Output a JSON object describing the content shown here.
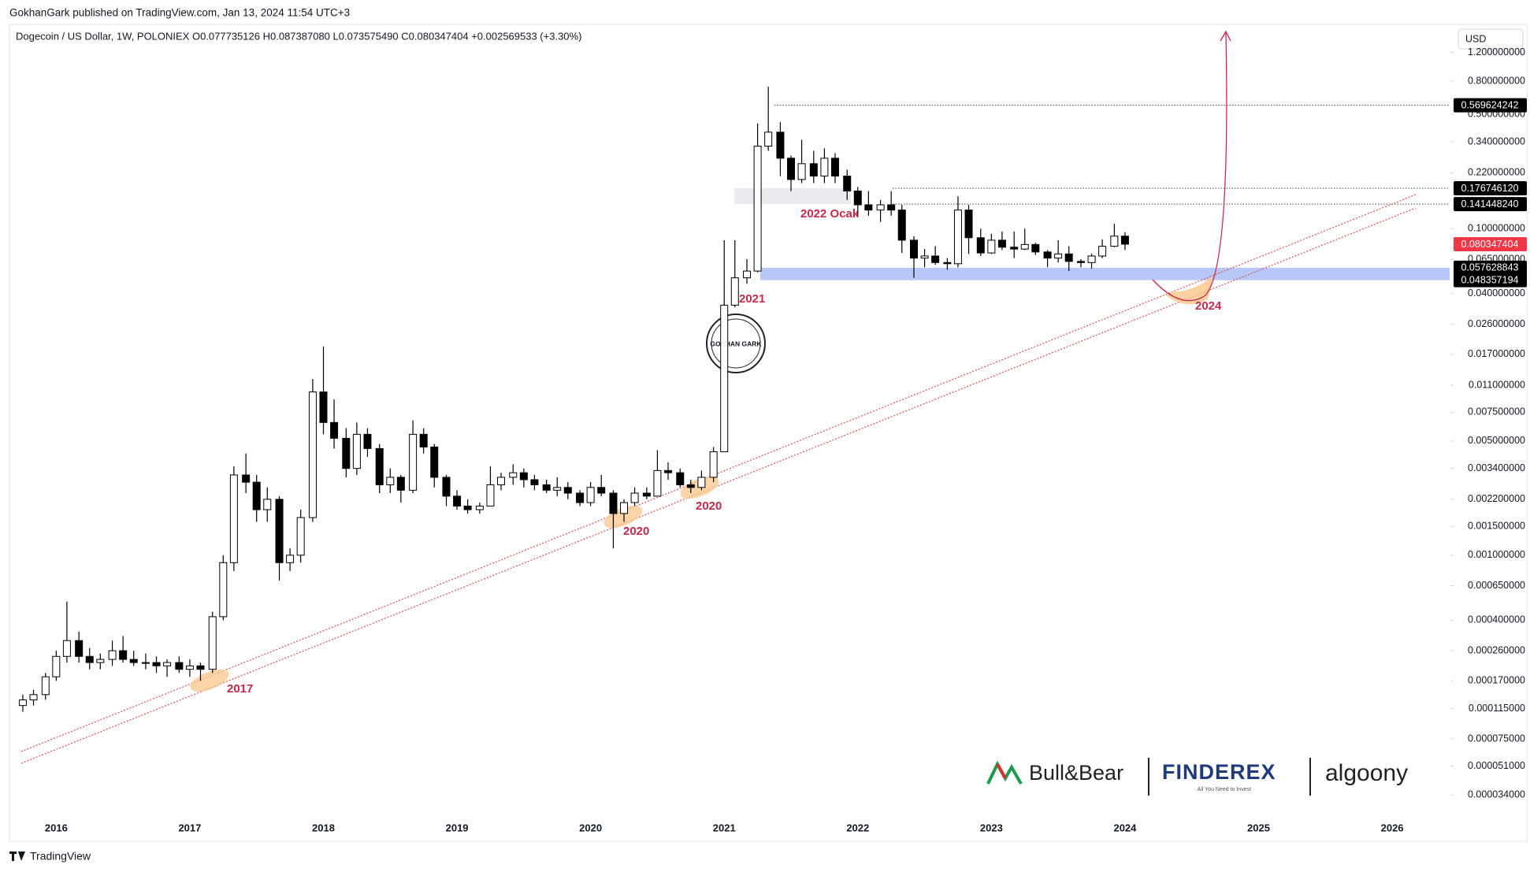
{
  "header": {
    "published": "GokhanGark published on TradingView.com, Jan 13, 2024 11:54 UTC+3",
    "symbol_line": "Dogecoin / US Dollar, 1W, POLONIEX  O0.077735126  H0.087387080  L0.073575490  C0.080347404  +0.002569533 (+3.30%)",
    "currency": "USD",
    "footer": "TradingView"
  },
  "chart_data": {
    "type": "candlestick",
    "log_scale": true,
    "grid": false,
    "colors": {
      "up": "#ffffff",
      "down": "#000000",
      "wick": "#000000"
    },
    "xlim": [
      2015.65,
      2026.43
    ],
    "ylim": [
      2.61e-05,
      1.35
    ],
    "xticks": [
      2016,
      2017,
      2018,
      2019,
      2020,
      2021,
      2022,
      2023,
      2024,
      2025,
      2026
    ],
    "yticks": [
      {
        "value": 1.2,
        "label": "1.200000000"
      },
      {
        "value": 0.8,
        "label": "0.800000000"
      },
      {
        "value": 0.5,
        "label": "0.500000000"
      },
      {
        "value": 0.34,
        "label": "0.340000000"
      },
      {
        "value": 0.22,
        "label": "0.220000000"
      },
      {
        "value": 0.1,
        "label": "0.100000000"
      },
      {
        "value": 0.065,
        "label": "0.065000000"
      },
      {
        "value": 0.04,
        "label": "0.040000000"
      },
      {
        "value": 0.026,
        "label": "0.026000000"
      },
      {
        "value": 0.017,
        "label": "0.017000000"
      },
      {
        "value": 0.011,
        "label": "0.011000000"
      },
      {
        "value": 0.0075,
        "label": "0.007500000"
      },
      {
        "value": 0.005,
        "label": "0.005000000"
      },
      {
        "value": 0.0034,
        "label": "0.003400000"
      },
      {
        "value": 0.0022,
        "label": "0.002200000"
      },
      {
        "value": 0.0015,
        "label": "0.001500000"
      },
      {
        "value": 0.001,
        "label": "0.001000000"
      },
      {
        "value": 0.00065,
        "label": "0.000650000"
      },
      {
        "value": 0.0004,
        "label": "0.000400000"
      },
      {
        "value": 0.00026,
        "label": "0.000260000"
      },
      {
        "value": 0.00017,
        "label": "0.000170000"
      },
      {
        "value": 0.000115,
        "label": "0.000115000"
      },
      {
        "value": 7.5e-05,
        "label": "0.000075000"
      },
      {
        "value": 5.1e-05,
        "label": "0.000051000"
      },
      {
        "value": 3.4e-05,
        "label": "0.000034000"
      }
    ],
    "x": [
      2015.75,
      2015.83,
      2015.92,
      2016.0,
      2016.08,
      2016.17,
      2016.25,
      2016.33,
      2016.42,
      2016.5,
      2016.58,
      2016.67,
      2016.75,
      2016.83,
      2016.92,
      2017.0,
      2017.08,
      2017.17,
      2017.25,
      2017.33,
      2017.42,
      2017.5,
      2017.58,
      2017.67,
      2017.75,
      2017.83,
      2017.92,
      2018.0,
      2018.08,
      2018.17,
      2018.25,
      2018.33,
      2018.42,
      2018.5,
      2018.58,
      2018.67,
      2018.75,
      2018.83,
      2018.92,
      2019.0,
      2019.08,
      2019.17,
      2019.25,
      2019.33,
      2019.42,
      2019.5,
      2019.58,
      2019.67,
      2019.75,
      2019.83,
      2019.92,
      2020.0,
      2020.08,
      2020.17,
      2020.25,
      2020.33,
      2020.42,
      2020.5,
      2020.58,
      2020.67,
      2020.75,
      2020.83,
      2020.92,
      2021.0,
      2021.08,
      2021.17,
      2021.25,
      2021.33,
      2021.42,
      2021.5,
      2021.58,
      2021.67,
      2021.75,
      2021.83,
      2021.92,
      2022.0,
      2022.08,
      2022.17,
      2022.25,
      2022.33,
      2022.42,
      2022.5,
      2022.58,
      2022.67,
      2022.75,
      2022.83,
      2022.92,
      2023.0,
      2023.08,
      2023.17,
      2023.25,
      2023.33,
      2023.42,
      2023.5,
      2023.58,
      2023.67,
      2023.75,
      2023.83,
      2023.92,
      2024.0
    ],
    "open": [
      0.00012,
      0.00013,
      0.00014,
      0.00018,
      0.00024,
      0.0003,
      0.00024,
      0.00022,
      0.00023,
      0.00026,
      0.00023,
      0.00022,
      0.00022,
      0.00021,
      0.00022,
      0.0002,
      0.00021,
      0.0002,
      0.00042,
      0.0009,
      0.0031,
      0.0028,
      0.0019,
      0.0022,
      0.0009,
      0.001,
      0.0017,
      0.01,
      0.0065,
      0.0052,
      0.0034,
      0.0055,
      0.0045,
      0.0027,
      0.003,
      0.0025,
      0.0055,
      0.0046,
      0.003,
      0.0023,
      0.002,
      0.0019,
      0.002,
      0.0027,
      0.003,
      0.0032,
      0.0029,
      0.0027,
      0.0025,
      0.0026,
      0.0024,
      0.0021,
      0.0026,
      0.0024,
      0.0018,
      0.0021,
      0.0024,
      0.0023,
      0.0033,
      0.0032,
      0.0027,
      0.0026,
      0.003,
      0.0043,
      0.034,
      0.05,
      0.055,
      0.32,
      0.39,
      0.27,
      0.2,
      0.25,
      0.21,
      0.27,
      0.21,
      0.17,
      0.14,
      0.13,
      0.14,
      0.13,
      0.085,
      0.066,
      0.068,
      0.062,
      0.061,
      0.13,
      0.088,
      0.071,
      0.085,
      0.077,
      0.075,
      0.08,
      0.072,
      0.066,
      0.07,
      0.063,
      0.062,
      0.068,
      0.078,
      0.09
    ],
    "high": [
      0.00014,
      0.00015,
      0.00019,
      0.00026,
      0.00052,
      0.00034,
      0.00027,
      0.00025,
      0.0003,
      0.00032,
      0.00026,
      0.00025,
      0.00024,
      0.00023,
      0.00024,
      0.00023,
      0.00022,
      0.00045,
      0.001,
      0.0035,
      0.0042,
      0.0031,
      0.0026,
      0.0023,
      0.0011,
      0.0019,
      0.012,
      0.019,
      0.009,
      0.006,
      0.0065,
      0.006,
      0.0048,
      0.0034,
      0.0031,
      0.0067,
      0.006,
      0.0048,
      0.0031,
      0.0025,
      0.0022,
      0.0021,
      0.0035,
      0.0032,
      0.0036,
      0.0034,
      0.0031,
      0.0029,
      0.003,
      0.0028,
      0.0025,
      0.0028,
      0.0031,
      0.0025,
      0.0022,
      0.0026,
      0.0026,
      0.0044,
      0.0037,
      0.0034,
      0.0029,
      0.0033,
      0.0046,
      0.085,
      0.085,
      0.065,
      0.44,
      0.74,
      0.45,
      0.28,
      0.35,
      0.3,
      0.31,
      0.29,
      0.23,
      0.18,
      0.17,
      0.15,
      0.17,
      0.14,
      0.09,
      0.075,
      0.078,
      0.066,
      0.158,
      0.14,
      0.1,
      0.093,
      0.096,
      0.096,
      0.1,
      0.082,
      0.074,
      0.085,
      0.078,
      0.065,
      0.07,
      0.086,
      0.107,
      0.095
    ],
    "low": [
      0.00011,
      0.00012,
      0.00013,
      0.00017,
      0.00022,
      0.00022,
      0.0002,
      0.0002,
      0.00021,
      0.00022,
      0.00021,
      0.0002,
      0.00019,
      0.00018,
      0.00019,
      0.00018,
      0.00017,
      0.00019,
      0.0004,
      0.0008,
      0.0024,
      0.0016,
      0.0016,
      0.0007,
      0.0008,
      0.0009,
      0.0016,
      0.0055,
      0.0045,
      0.003,
      0.0031,
      0.004,
      0.0024,
      0.0024,
      0.0021,
      0.0024,
      0.0042,
      0.0026,
      0.002,
      0.0019,
      0.0018,
      0.0018,
      0.002,
      0.0025,
      0.0027,
      0.0026,
      0.0025,
      0.0024,
      0.0023,
      0.0022,
      0.002,
      0.002,
      0.0023,
      0.0011,
      0.0016,
      0.002,
      0.0022,
      0.0023,
      0.0029,
      0.0026,
      0.0024,
      0.0025,
      0.0028,
      0.0043,
      0.033,
      0.046,
      0.054,
      0.3,
      0.21,
      0.17,
      0.19,
      0.19,
      0.19,
      0.19,
      0.15,
      0.12,
      0.12,
      0.11,
      0.12,
      0.071,
      0.05,
      0.058,
      0.06,
      0.056,
      0.058,
      0.07,
      0.068,
      0.07,
      0.074,
      0.066,
      0.074,
      0.069,
      0.058,
      0.062,
      0.055,
      0.058,
      0.057,
      0.066,
      0.077,
      0.074
    ],
    "close": [
      0.00013,
      0.00014,
      0.00018,
      0.00024,
      0.0003,
      0.00024,
      0.00022,
      0.00023,
      0.00026,
      0.00023,
      0.00022,
      0.00022,
      0.00021,
      0.00022,
      0.0002,
      0.00021,
      0.0002,
      0.00042,
      0.0009,
      0.0031,
      0.0028,
      0.0019,
      0.0022,
      0.0009,
      0.001,
      0.0017,
      0.01,
      0.0065,
      0.0052,
      0.0034,
      0.0055,
      0.0045,
      0.0027,
      0.003,
      0.0025,
      0.0055,
      0.0046,
      0.003,
      0.0023,
      0.002,
      0.0019,
      0.002,
      0.0027,
      0.003,
      0.0032,
      0.0029,
      0.0027,
      0.0025,
      0.0026,
      0.0024,
      0.0021,
      0.0026,
      0.0024,
      0.0018,
      0.0021,
      0.0024,
      0.0023,
      0.0033,
      0.0032,
      0.0027,
      0.0026,
      0.003,
      0.0043,
      0.034,
      0.05,
      0.055,
      0.32,
      0.39,
      0.27,
      0.2,
      0.25,
      0.21,
      0.27,
      0.21,
      0.17,
      0.14,
      0.13,
      0.14,
      0.13,
      0.085,
      0.066,
      0.068,
      0.062,
      0.061,
      0.13,
      0.088,
      0.071,
      0.085,
      0.077,
      0.075,
      0.08,
      0.072,
      0.066,
      0.07,
      0.063,
      0.062,
      0.068,
      0.078,
      0.09,
      0.080347404
    ],
    "levels": [
      {
        "value": 0.569624242,
        "label": "0.569624242"
      },
      {
        "value": 0.17674612,
        "label": "0.176746120"
      },
      {
        "value": 0.14144824,
        "label": "0.141448240"
      },
      {
        "value": 0.057628843,
        "label": "0.057628843"
      },
      {
        "value": 0.048357194,
        "label": "0.048357194"
      }
    ],
    "last_price": {
      "value": 0.080347404,
      "label": "0.080347404"
    },
    "annotations": [
      "2017",
      "2020",
      "2020",
      "2021",
      "2022 Ocak",
      "2024"
    ]
  },
  "watermark": "GOKHAN GARK",
  "logos": {
    "bull_bear": "Bull&Bear",
    "finderex": "FINDEREX",
    "finderex_tagline": "· All You Need to Invest ·",
    "algoony": "algoony"
  }
}
